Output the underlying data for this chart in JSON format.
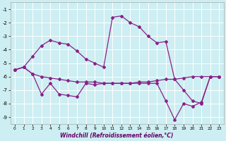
{
  "xlabel": "Windchill (Refroidissement éolien,°C)",
  "bg_color": "#cdeef2",
  "grid_color": "#ffffff",
  "line_color": "#882288",
  "xlim": [
    -0.5,
    23.5
  ],
  "ylim": [
    -9.5,
    -0.5
  ],
  "xticks": [
    0,
    1,
    2,
    3,
    4,
    5,
    6,
    7,
    8,
    9,
    10,
    11,
    12,
    13,
    14,
    15,
    16,
    17,
    18,
    19,
    20,
    21,
    22,
    23
  ],
  "yticks": [
    -9,
    -8,
    -7,
    -6,
    -5,
    -4,
    -3,
    -2,
    -1
  ],
  "curve_upper_x": [
    0,
    1,
    2,
    3,
    4,
    5,
    6,
    7,
    8,
    9,
    10,
    11,
    12,
    13,
    14,
    15,
    16,
    17,
    18,
    19,
    20,
    21,
    22,
    23
  ],
  "curve_upper_y": [
    -5.5,
    -5.3,
    -4.5,
    -3.7,
    -3.3,
    -3.5,
    -3.6,
    -4.1,
    -4.7,
    -5.0,
    -5.3,
    -1.6,
    -1.5,
    -2.0,
    -2.3,
    -3.0,
    -3.5,
    -3.4,
    -6.2,
    -7.0,
    -7.8,
    -8.0,
    -6.0,
    -6.0
  ],
  "curve_mid_x": [
    0,
    1,
    2,
    3,
    4,
    5,
    6,
    7,
    8,
    9,
    10,
    11,
    12,
    13,
    14,
    15,
    16,
    17,
    18,
    19,
    20,
    21,
    22,
    23
  ],
  "curve_mid_y": [
    -5.5,
    -5.3,
    -5.8,
    -6.0,
    -6.1,
    -6.2,
    -6.3,
    -6.4,
    -6.4,
    -6.4,
    -6.5,
    -6.5,
    -6.5,
    -6.5,
    -6.4,
    -6.4,
    -6.3,
    -6.2,
    -6.2,
    -6.1,
    -6.0,
    -6.0,
    -6.0,
    -6.0
  ],
  "curve_lower_x": [
    0,
    1,
    2,
    3,
    4,
    5,
    6,
    7,
    8,
    9,
    10,
    11,
    12,
    13,
    14,
    15,
    16,
    17,
    18,
    19,
    20,
    21,
    22,
    23
  ],
  "curve_lower_y": [
    -5.5,
    -5.3,
    -5.8,
    -7.3,
    -6.5,
    -7.3,
    -7.4,
    -7.5,
    -6.5,
    -6.6,
    -6.5,
    -6.5,
    -6.5,
    -6.5,
    -6.5,
    -6.5,
    -6.5,
    -7.8,
    -9.2,
    -8.0,
    -8.2,
    -7.9,
    -6.0,
    -6.0
  ]
}
